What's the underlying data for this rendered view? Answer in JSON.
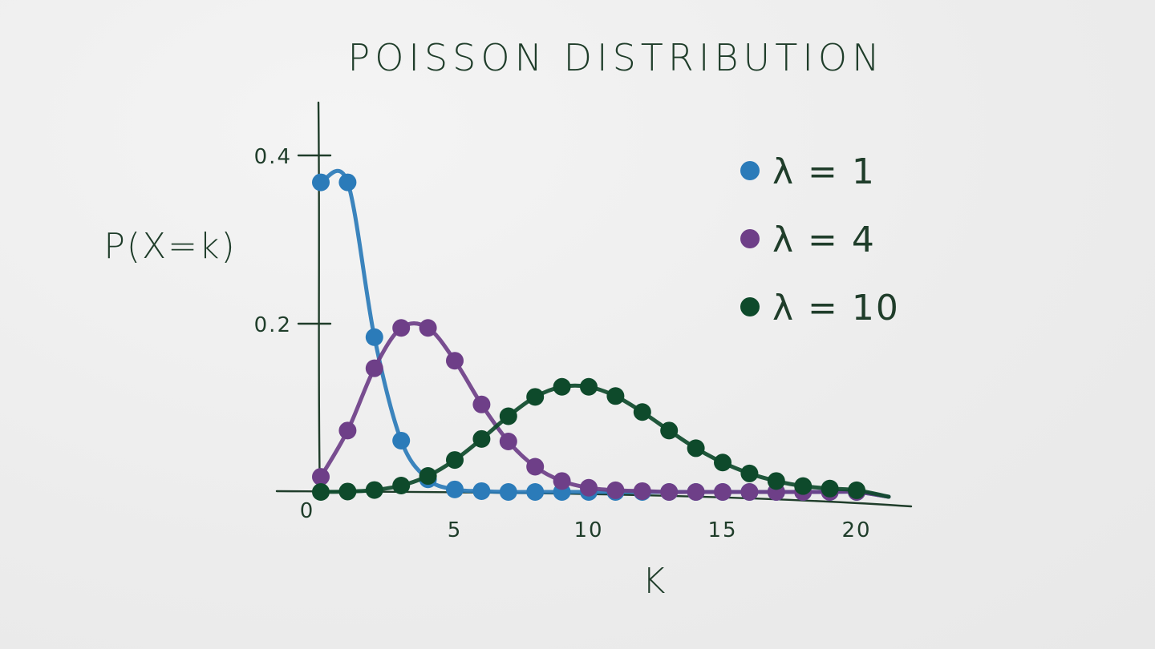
{
  "chart_data": {
    "type": "line",
    "title": "POISSON DISTRIBUTION",
    "xlabel": "K",
    "ylabel": "P(X=k)",
    "xlim": [
      0,
      22
    ],
    "ylim": [
      0,
      0.4
    ],
    "x_ticks": [
      {
        "value": 0,
        "label": "0"
      },
      {
        "value": 5,
        "label": "5"
      },
      {
        "value": 10,
        "label": "10"
      },
      {
        "value": 15,
        "label": "15"
      },
      {
        "value": 20,
        "label": "20"
      }
    ],
    "y_ticks": [
      {
        "value": 0.2,
        "label": "0.2"
      },
      {
        "value": 0.4,
        "label": "0.4"
      }
    ],
    "grid": false,
    "legend_position": "top-right",
    "series": [
      {
        "name": "λ = 1",
        "color": "#2b7bb9",
        "x": [
          0,
          1,
          2,
          3,
          4,
          5,
          6,
          7,
          8,
          9,
          10,
          11,
          12,
          13,
          14,
          15,
          16,
          17,
          18,
          19,
          20
        ],
        "values": [
          0.368,
          0.368,
          0.184,
          0.061,
          0.015,
          0.003,
          0.001,
          0.0,
          0.0,
          0.0,
          0.0,
          0.0,
          0.0,
          0.0,
          0.0,
          0.0,
          0.0,
          0.0,
          0.0,
          0.0,
          0.0
        ]
      },
      {
        "name": "λ = 4",
        "color": "#6e3f88",
        "x": [
          0,
          1,
          2,
          3,
          4,
          5,
          6,
          7,
          8,
          9,
          10,
          11,
          12,
          13,
          14,
          15,
          16,
          17,
          18,
          19,
          20
        ],
        "values": [
          0.018,
          0.073,
          0.147,
          0.195,
          0.195,
          0.156,
          0.104,
          0.06,
          0.03,
          0.013,
          0.005,
          0.002,
          0.001,
          0.0,
          0.0,
          0.0,
          0.0,
          0.0,
          0.0,
          0.0,
          0.0
        ]
      },
      {
        "name": "λ = 10",
        "color": "#0e4a2b",
        "x": [
          0,
          1,
          2,
          3,
          4,
          5,
          6,
          7,
          8,
          9,
          10,
          11,
          12,
          13,
          14,
          15,
          16,
          17,
          18,
          19,
          20
        ],
        "values": [
          0.0,
          0.0005,
          0.0023,
          0.0076,
          0.019,
          0.038,
          0.063,
          0.09,
          0.113,
          0.125,
          0.125,
          0.114,
          0.095,
          0.073,
          0.052,
          0.035,
          0.022,
          0.013,
          0.007,
          0.004,
          0.002
        ]
      }
    ]
  }
}
